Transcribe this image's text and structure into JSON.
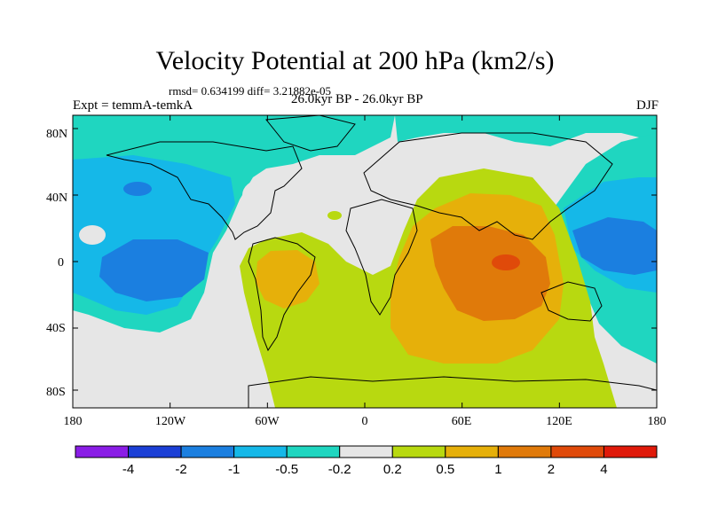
{
  "figure": {
    "title": "Velocity Potential at 200 hPa (km2/s)",
    "stats": "rmsd= 0.634199 diff= 3.21882e-05",
    "experiment": "Expt = temmA-temkA",
    "period": "26.0kyr BP - 26.0kyr BP",
    "season": "DJF"
  },
  "axes": {
    "lat_ticks": [
      "80N",
      "40N",
      "0",
      "40S",
      "80S"
    ],
    "lon_ticks": [
      "180",
      "120W",
      "60W",
      "0",
      "60E",
      "120E",
      "180"
    ]
  },
  "colorbar": {
    "colors": [
      "#8a1de6",
      "#1b3fd6",
      "#1b7fe0",
      "#15b8e8",
      "#1fd6c0",
      "#e6e6e6",
      "#b8d910",
      "#e6b00a",
      "#e07a0a",
      "#e04a0a",
      "#e01a0a"
    ],
    "labels": [
      "-4",
      "-2",
      "-1",
      "-0.5",
      "-0.2",
      "0.2",
      "0.5",
      "1",
      "2",
      "4"
    ]
  },
  "fields": {
    "neutral": "#e6e6e6",
    "neg_weak": "#1fd6c0",
    "neg_mid": "#15b8e8",
    "neg_strong": "#1b7fe0",
    "pos_weak": "#b8d910",
    "pos_mid": "#e6b00a",
    "pos_strong": "#e07a0a",
    "pos_max": "#e04a0a"
  }
}
